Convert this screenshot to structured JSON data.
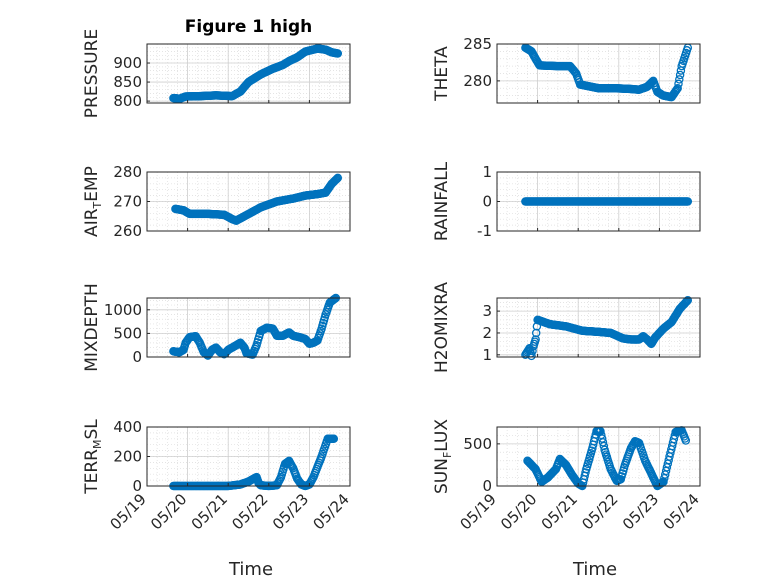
{
  "colors": {
    "marker": "#0072BD",
    "axis": "#262626",
    "grid": "#dcdcdc",
    "bg": "#ffffff"
  },
  "x_tick_labels": [
    "05/19",
    "05/20",
    "05/21",
    "05/22",
    "05/23",
    "05/24"
  ],
  "chart_data": [
    {
      "type": "scatter",
      "title": "Figure 1 high",
      "ylabel": {
        "text": "PRESSURE"
      },
      "ylim": [
        795,
        950
      ],
      "yticks": [
        800,
        850,
        900
      ],
      "ytick_labels": [
        "800",
        "850",
        "900"
      ],
      "grid": "major+minor",
      "curve": [
        [
          19.65,
          808
        ],
        [
          19.8,
          806
        ],
        [
          19.95,
          812
        ],
        [
          20.3,
          813
        ],
        [
          20.7,
          815
        ],
        [
          21.1,
          813
        ],
        [
          21.3,
          825
        ],
        [
          21.5,
          850
        ],
        [
          21.8,
          870
        ],
        [
          22.1,
          885
        ],
        [
          22.35,
          895
        ],
        [
          22.5,
          905
        ],
        [
          22.7,
          915
        ],
        [
          22.9,
          930
        ],
        [
          23.2,
          938
        ],
        [
          23.4,
          935
        ],
        [
          23.55,
          928
        ],
        [
          23.7,
          925
        ]
      ]
    },
    {
      "type": "scatter",
      "title": "",
      "ylabel": {
        "text": "THETA"
      },
      "ylim": [
        277,
        285
      ],
      "yticks": [
        280,
        285
      ],
      "ytick_labels": [
        "280",
        "285"
      ],
      "grid": "major+minor",
      "curve": [
        [
          19.7,
          284.5
        ],
        [
          19.85,
          284
        ],
        [
          19.95,
          283
        ],
        [
          20.05,
          282.1
        ],
        [
          20.5,
          282
        ],
        [
          20.8,
          282
        ],
        [
          20.95,
          281
        ],
        [
          21.05,
          279.5
        ],
        [
          21.5,
          279
        ],
        [
          21.9,
          279
        ],
        [
          22.3,
          278.9
        ],
        [
          22.5,
          278.8
        ],
        [
          22.7,
          279.2
        ],
        [
          22.85,
          280
        ],
        [
          22.95,
          278.5
        ],
        [
          23.1,
          278
        ],
        [
          23.3,
          277.8
        ],
        [
          23.45,
          279
        ],
        [
          23.55,
          282
        ],
        [
          23.7,
          284.5
        ]
      ]
    },
    {
      "type": "scatter",
      "title": "",
      "ylabel": {
        "text": "AIR",
        "sub": "T",
        "rest": "EMP"
      },
      "ylim": [
        260,
        280
      ],
      "yticks": [
        260,
        270,
        280
      ],
      "ytick_labels": [
        "260",
        "270",
        "280"
      ],
      "grid": "major+minor",
      "curve": [
        [
          19.7,
          267.5
        ],
        [
          19.9,
          267
        ],
        [
          20.05,
          265.8
        ],
        [
          20.5,
          265.8
        ],
        [
          20.9,
          265.5
        ],
        [
          21.1,
          264
        ],
        [
          21.2,
          263.5
        ],
        [
          21.4,
          265
        ],
        [
          21.8,
          268
        ],
        [
          22.2,
          270
        ],
        [
          22.6,
          271
        ],
        [
          22.9,
          272
        ],
        [
          23.2,
          272.5
        ],
        [
          23.4,
          273
        ],
        [
          23.55,
          276
        ],
        [
          23.7,
          278
        ]
      ]
    },
    {
      "type": "scatter",
      "title": "",
      "ylabel": {
        "text": "RAINFALL"
      },
      "ylim": [
        -1,
        1
      ],
      "yticks": [
        -1,
        0,
        1
      ],
      "ytick_labels": [
        "-1",
        "0",
        "1"
      ],
      "grid": "major+minor",
      "curve": [
        [
          19.7,
          0
        ],
        [
          23.7,
          0
        ]
      ]
    },
    {
      "type": "scatter",
      "title": "",
      "ylabel": {
        "text": "MIXDEPTH"
      },
      "ylim": [
        0,
        1250
      ],
      "yticks": [
        0,
        500,
        1000
      ],
      "ytick_labels": [
        "0",
        "500",
        "1000"
      ],
      "grid": "major+minor",
      "curve": [
        [
          19.65,
          120
        ],
        [
          19.8,
          100
        ],
        [
          19.9,
          150
        ],
        [
          19.95,
          300
        ],
        [
          20.05,
          420
        ],
        [
          20.2,
          440
        ],
        [
          20.3,
          300
        ],
        [
          20.4,
          100
        ],
        [
          20.5,
          30
        ],
        [
          20.6,
          150
        ],
        [
          20.7,
          200
        ],
        [
          20.8,
          100
        ],
        [
          20.9,
          60
        ],
        [
          21.0,
          150
        ],
        [
          21.2,
          250
        ],
        [
          21.3,
          300
        ],
        [
          21.4,
          200
        ],
        [
          21.45,
          80
        ],
        [
          21.6,
          50
        ],
        [
          21.7,
          250
        ],
        [
          21.8,
          550
        ],
        [
          21.95,
          620
        ],
        [
          22.1,
          600
        ],
        [
          22.2,
          450
        ],
        [
          22.35,
          450
        ],
        [
          22.5,
          520
        ],
        [
          22.6,
          450
        ],
        [
          22.75,
          420
        ],
        [
          22.9,
          380
        ],
        [
          23.0,
          280
        ],
        [
          23.1,
          300
        ],
        [
          23.2,
          350
        ],
        [
          23.3,
          600
        ],
        [
          23.4,
          900
        ],
        [
          23.5,
          1150
        ],
        [
          23.65,
          1250
        ]
      ]
    },
    {
      "type": "scatter",
      "title": "",
      "ylabel": {
        "text": "H2OMIXRA"
      },
      "ylim": [
        0.9,
        3.6
      ],
      "yticks": [
        1,
        2,
        3
      ],
      "ytick_labels": [
        "1",
        "2",
        "3"
      ],
      "grid": "major+minor",
      "curve": [
        [
          19.7,
          1
        ],
        [
          19.8,
          1.3
        ],
        [
          19.85,
          0.95
        ],
        [
          19.9,
          1.4
        ],
        [
          19.95,
          1.7
        ],
        [
          20.0,
          2.6
        ],
        [
          20.3,
          2.4
        ],
        [
          20.7,
          2.3
        ],
        [
          21.1,
          2.1
        ],
        [
          21.5,
          2.05
        ],
        [
          21.8,
          2
        ],
        [
          22.1,
          1.75
        ],
        [
          22.3,
          1.7
        ],
        [
          22.5,
          1.7
        ],
        [
          22.6,
          1.85
        ],
        [
          22.7,
          1.7
        ],
        [
          22.8,
          1.5
        ],
        [
          22.9,
          1.8
        ],
        [
          23.1,
          2.2
        ],
        [
          23.3,
          2.5
        ],
        [
          23.5,
          3.1
        ],
        [
          23.7,
          3.5
        ]
      ]
    },
    {
      "type": "scatter",
      "title": "",
      "ylabel": {
        "text": "TERR",
        "sub": "M",
        "rest": "SL"
      },
      "ylim": [
        0,
        400
      ],
      "yticks": [
        0,
        200,
        400
      ],
      "ytick_labels": [
        "0",
        "200",
        "400"
      ],
      "grid": "major+minor",
      "curve": [
        [
          19.65,
          0
        ],
        [
          21.0,
          0
        ],
        [
          21.3,
          10
        ],
        [
          21.5,
          30
        ],
        [
          21.7,
          60
        ],
        [
          21.75,
          20
        ],
        [
          21.8,
          5
        ],
        [
          22.0,
          0
        ],
        [
          22.2,
          5
        ],
        [
          22.3,
          60
        ],
        [
          22.4,
          150
        ],
        [
          22.5,
          170
        ],
        [
          22.6,
          120
        ],
        [
          22.7,
          50
        ],
        [
          22.8,
          10
        ],
        [
          22.9,
          0
        ],
        [
          23.0,
          10
        ],
        [
          23.1,
          60
        ],
        [
          23.3,
          200
        ],
        [
          23.45,
          320
        ],
        [
          23.6,
          320
        ]
      ]
    },
    {
      "type": "scatter",
      "title": "",
      "ylabel": {
        "text": "SUN",
        "sub": "F",
        "rest": "LUX"
      },
      "ylim": [
        0,
        700
      ],
      "yticks": [
        0,
        500
      ],
      "ytick_labels": [
        "0",
        "500"
      ],
      "grid": "major+minor",
      "curve": [
        [
          19.75,
          300
        ],
        [
          19.95,
          200
        ],
        [
          20.1,
          50
        ],
        [
          20.25,
          100
        ],
        [
          20.45,
          200
        ],
        [
          20.55,
          320
        ],
        [
          20.7,
          250
        ],
        [
          20.85,
          130
        ],
        [
          21.0,
          30
        ],
        [
          21.1,
          0
        ],
        [
          21.2,
          200
        ],
        [
          21.35,
          450
        ],
        [
          21.45,
          650
        ],
        [
          21.55,
          650
        ],
        [
          21.65,
          430
        ],
        [
          21.8,
          200
        ],
        [
          21.95,
          60
        ],
        [
          22.05,
          80
        ],
        [
          22.15,
          250
        ],
        [
          22.3,
          450
        ],
        [
          22.4,
          530
        ],
        [
          22.5,
          510
        ],
        [
          22.65,
          300
        ],
        [
          22.85,
          100
        ],
        [
          22.95,
          0
        ],
        [
          23.1,
          50
        ],
        [
          23.25,
          350
        ],
        [
          23.4,
          640
        ],
        [
          23.55,
          660
        ],
        [
          23.65,
          540
        ]
      ]
    }
  ],
  "x_axis": {
    "label": "Time"
  }
}
